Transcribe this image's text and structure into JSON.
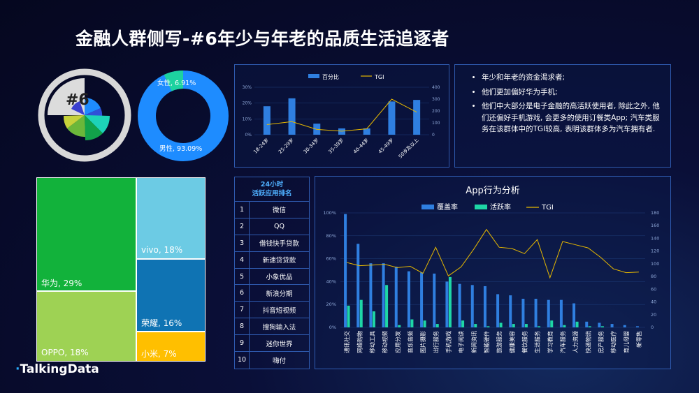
{
  "title": "金融人群侧写-#6年少与年老的品质生活追逐者",
  "badge": "#6",
  "brand": {
    "name": "TalkingData"
  },
  "colors": {
    "bar": "#2f7fe0",
    "active": "#1ed6a6",
    "tgi": "#e6b800",
    "panel_border": "#2f5bb0"
  },
  "gender_donut": {
    "female_label": "女性, 6.91%",
    "male_label": "男性, 93.09%",
    "female": 6.91,
    "male": 93.09
  },
  "bullets": [
    "年少和年老的资金渴求者;",
    "他们更加偏好华为手机;",
    "他们中大部分是电子金融的高活跃使用者, 除此之外, 他们还偏好手机游戏, 会更多的使用订餐类App; 汽车类服务在该群体中的TGI较高, 表明该群体多为汽车拥有者."
  ],
  "treemap": [
    {
      "label": "华为, 29%",
      "value": 29,
      "color": "#12b23b"
    },
    {
      "label": "OPPO, 18%",
      "value": 18,
      "color": "#9ed254"
    },
    {
      "label": "vivo, 18%",
      "value": 18,
      "color": "#6ccbe4"
    },
    {
      "label": "荣耀, 16%",
      "value": 16,
      "color": "#0f73b3"
    },
    {
      "label": "小米, 7%",
      "value": 7,
      "color": "#ffbf00"
    }
  ],
  "ranking": {
    "header_line1": "24小时",
    "header_line2": "活跃应用排名",
    "items": [
      "微信",
      "QQ",
      "借钱快手贷款",
      "新速贷贷款",
      "小象优品",
      "新浪分期",
      "抖音短视频",
      "搜狗输入法",
      "迷你世界",
      "嗨付"
    ],
    "numbers": [
      "1",
      "2",
      "3",
      "4",
      "5",
      "6",
      "7",
      "8",
      "9",
      "10"
    ]
  },
  "chart_data": [
    {
      "type": "bar",
      "legend": [
        "百分比",
        "TGI"
      ],
      "categories": [
        "18-24岁",
        "25-29岁",
        "30-34岁",
        "35-39岁",
        "40-44岁",
        "45-49岁",
        "50岁及以上"
      ],
      "series": [
        {
          "name": "百分比",
          "values": [
            18,
            23,
            7,
            4,
            4,
            21,
            22
          ]
        },
        {
          "name": "TGI",
          "values": [
            85,
            110,
            45,
            30,
            50,
            300,
            190
          ]
        }
      ],
      "ylim": [
        0,
        30
      ],
      "y_ticks": [
        "0%",
        "10%",
        "20%",
        "30%"
      ],
      "y2lim": [
        0,
        400
      ],
      "y2_ticks": [
        "0",
        "100",
        "200",
        "300",
        "400"
      ]
    },
    {
      "type": "bar",
      "title": "App行为分析",
      "legend": [
        "覆盖率",
        "活跃率",
        "TGI"
      ],
      "categories": [
        "通讯社交",
        "网络购物",
        "移动工具",
        "移动视频",
        "应用分发",
        "音乐音频",
        "图片摄影",
        "出行服务",
        "手机游戏",
        "电子阅读",
        "新闻资讯",
        "智能硬件",
        "旅游服务",
        "健康美容",
        "餐饮服务",
        "生活服务",
        "学习教育",
        "汽车服务",
        "人力资源",
        "快递物流",
        "房产服务",
        "移动医疗",
        "育儿母婴",
        "新零售"
      ],
      "series": [
        {
          "name": "覆盖率",
          "values": [
            99,
            73,
            56,
            56,
            53,
            49,
            48,
            47,
            40,
            38,
            37,
            36,
            29,
            28,
            25,
            25,
            24,
            24,
            21,
            5,
            4,
            3,
            2,
            1
          ]
        },
        {
          "name": "活跃率",
          "values": [
            19,
            24,
            14,
            37,
            2,
            7,
            6,
            3,
            44,
            6,
            3,
            1,
            4,
            3,
            3,
            1,
            6,
            2,
            5,
            1,
            1,
            0,
            0,
            0
          ]
        },
        {
          "name": "TGI",
          "values": [
            102,
            97,
            98,
            99,
            94,
            96,
            85,
            126,
            81,
            95,
            123,
            154,
            126,
            124,
            116,
            138,
            78,
            135,
            130,
            125,
            110,
            92,
            86,
            87
          ]
        }
      ],
      "ylim": [
        0,
        100
      ],
      "y_ticks": [
        "0%",
        "20%",
        "40%",
        "60%",
        "80%",
        "100%"
      ],
      "y2lim": [
        0,
        180
      ],
      "y2_ticks": [
        "0",
        "20",
        "40",
        "60",
        "80",
        "100",
        "120",
        "140",
        "160",
        "180"
      ]
    }
  ]
}
